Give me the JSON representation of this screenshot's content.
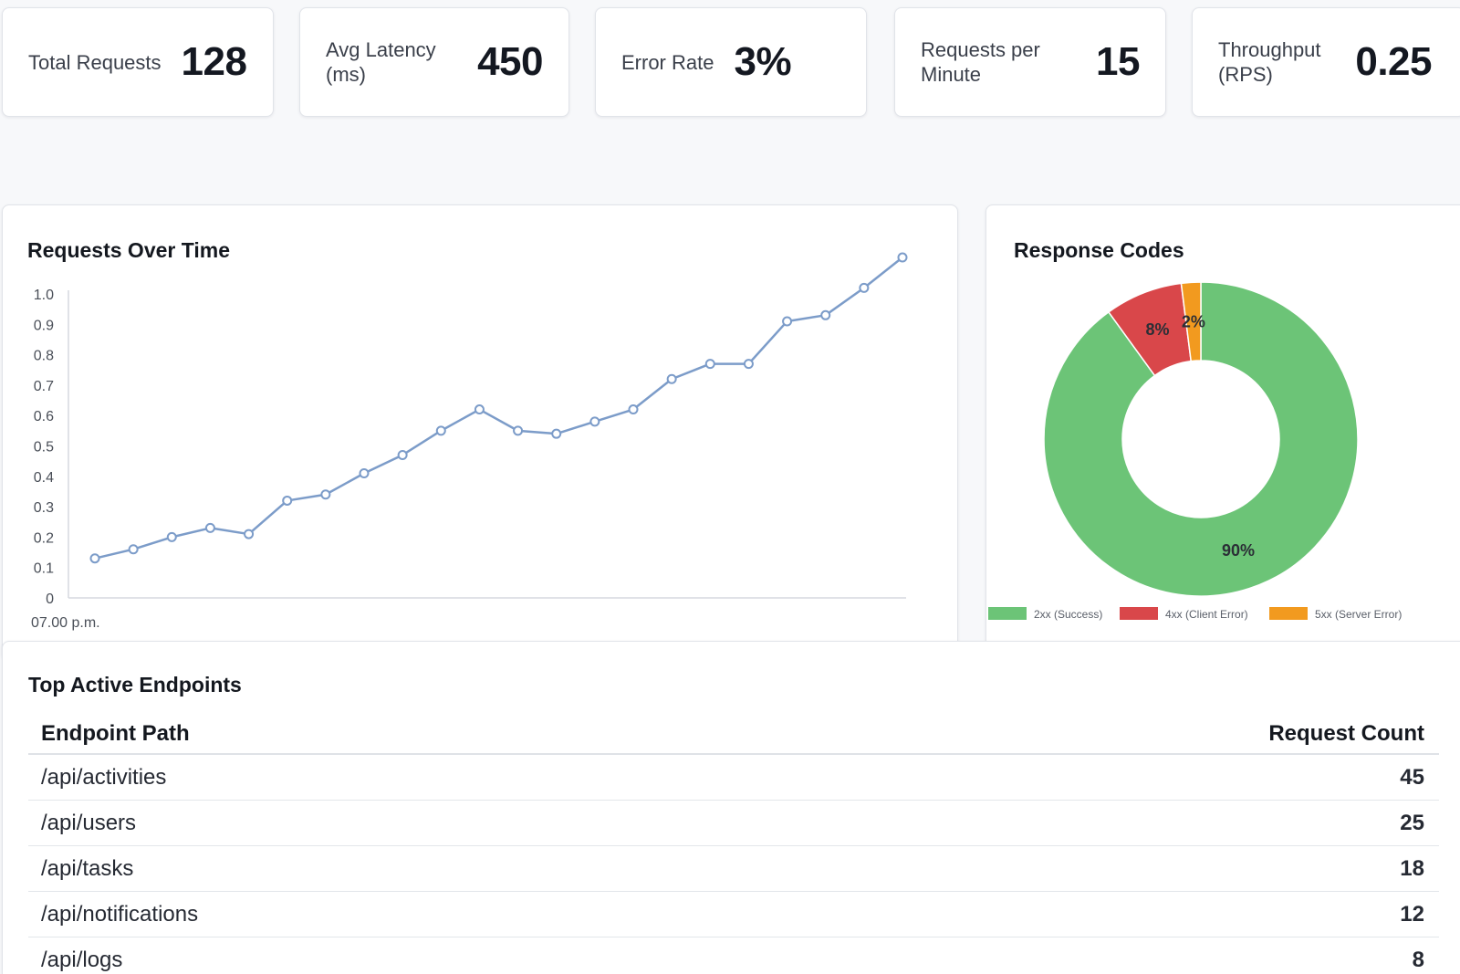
{
  "kpis": [
    {
      "label": "Total Requests",
      "value": "128"
    },
    {
      "label": "Avg Latency\n(ms)",
      "value": "450"
    },
    {
      "label": "Error Rate",
      "value": "3%"
    },
    {
      "label": "Requests per\nMinute",
      "value": "15"
    },
    {
      "label": "Throughput\n(RPS)",
      "value": "0.25"
    }
  ],
  "line_panel": {
    "title": "Requests Over Time"
  },
  "pie_panel": {
    "title": "Response Codes"
  },
  "table_panel": {
    "title": "Top Active Endpoints",
    "columns": [
      "Endpoint Path",
      "Request Count"
    ],
    "rows": [
      {
        "path": "/api/activities",
        "count": "45"
      },
      {
        "path": "/api/users",
        "count": "25"
      },
      {
        "path": "/api/tasks",
        "count": "18"
      },
      {
        "path": "/api/notifications",
        "count": "12"
      },
      {
        "path": "/api/logs",
        "count": "8"
      }
    ]
  },
  "chart_data": [
    {
      "type": "line",
      "title": "Requests Over Time",
      "xlabel": "",
      "ylabel": "",
      "x_tick_labels": [
        "07.00 p.m."
      ],
      "y_tick_labels": [
        "0",
        "0.1",
        "0.2",
        "0.3",
        "0.4",
        "0.5",
        "0.6",
        "0.7",
        "0.8",
        "0.9",
        "1.0"
      ],
      "ylim": [
        0,
        1.0
      ],
      "grid": false,
      "color": "#7c9cc9",
      "series": [
        {
          "values": [
            0.13,
            0.16,
            0.2,
            0.23,
            0.21,
            0.32,
            0.34,
            0.41,
            0.47,
            0.55,
            0.62,
            0.55,
            0.54,
            0.58,
            0.62,
            0.72,
            0.77,
            0.77,
            0.91,
            0.93,
            1.02,
            1.12
          ]
        }
      ]
    },
    {
      "type": "pie",
      "title": "Response Codes",
      "donut": true,
      "legend_position": "bottom",
      "slices": [
        {
          "label": "2xx (Success)",
          "value": 90,
          "display": "90%",
          "color": "#6cc477"
        },
        {
          "label": "4xx (Client Error)",
          "value": 8,
          "display": "8%",
          "color": "#d9474a"
        },
        {
          "label": "5xx (Server Error)",
          "value": 2,
          "display": "2%",
          "color": "#f29a1f"
        }
      ]
    }
  ]
}
